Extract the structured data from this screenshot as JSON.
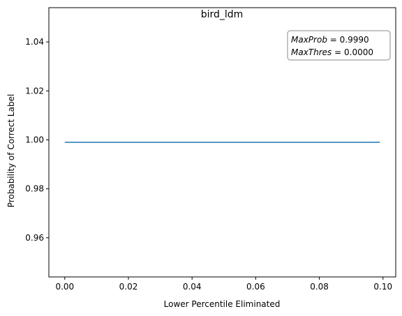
{
  "chart_data": {
    "type": "line",
    "title": "bird_ldm",
    "xlabel": "Lower Percentile Eliminated",
    "ylabel": "Probability of Correct Label",
    "xlim": [
      -0.005,
      0.104
    ],
    "ylim": [
      0.944,
      1.054
    ],
    "x_ticks": [
      0.0,
      0.02,
      0.04,
      0.06,
      0.08,
      0.1
    ],
    "x_tick_labels": [
      "0.00",
      "0.02",
      "0.04",
      "0.06",
      "0.08",
      "0.10"
    ],
    "y_ticks": [
      0.96,
      0.98,
      1.0,
      1.02,
      1.04
    ],
    "y_tick_labels": [
      "0.96",
      "0.98",
      "1.00",
      "1.02",
      "1.04"
    ],
    "grid": false,
    "series": [
      {
        "color": "#1f77b4",
        "x": [
          0.0,
          0.099
        ],
        "y": [
          0.999,
          0.999
        ]
      }
    ],
    "annotation": {
      "line1_name": "MaxProb",
      "line1_value": "0.9990",
      "line2_name": "MaxThres",
      "line2_value": "0.0000",
      "placement": "top-right"
    }
  }
}
